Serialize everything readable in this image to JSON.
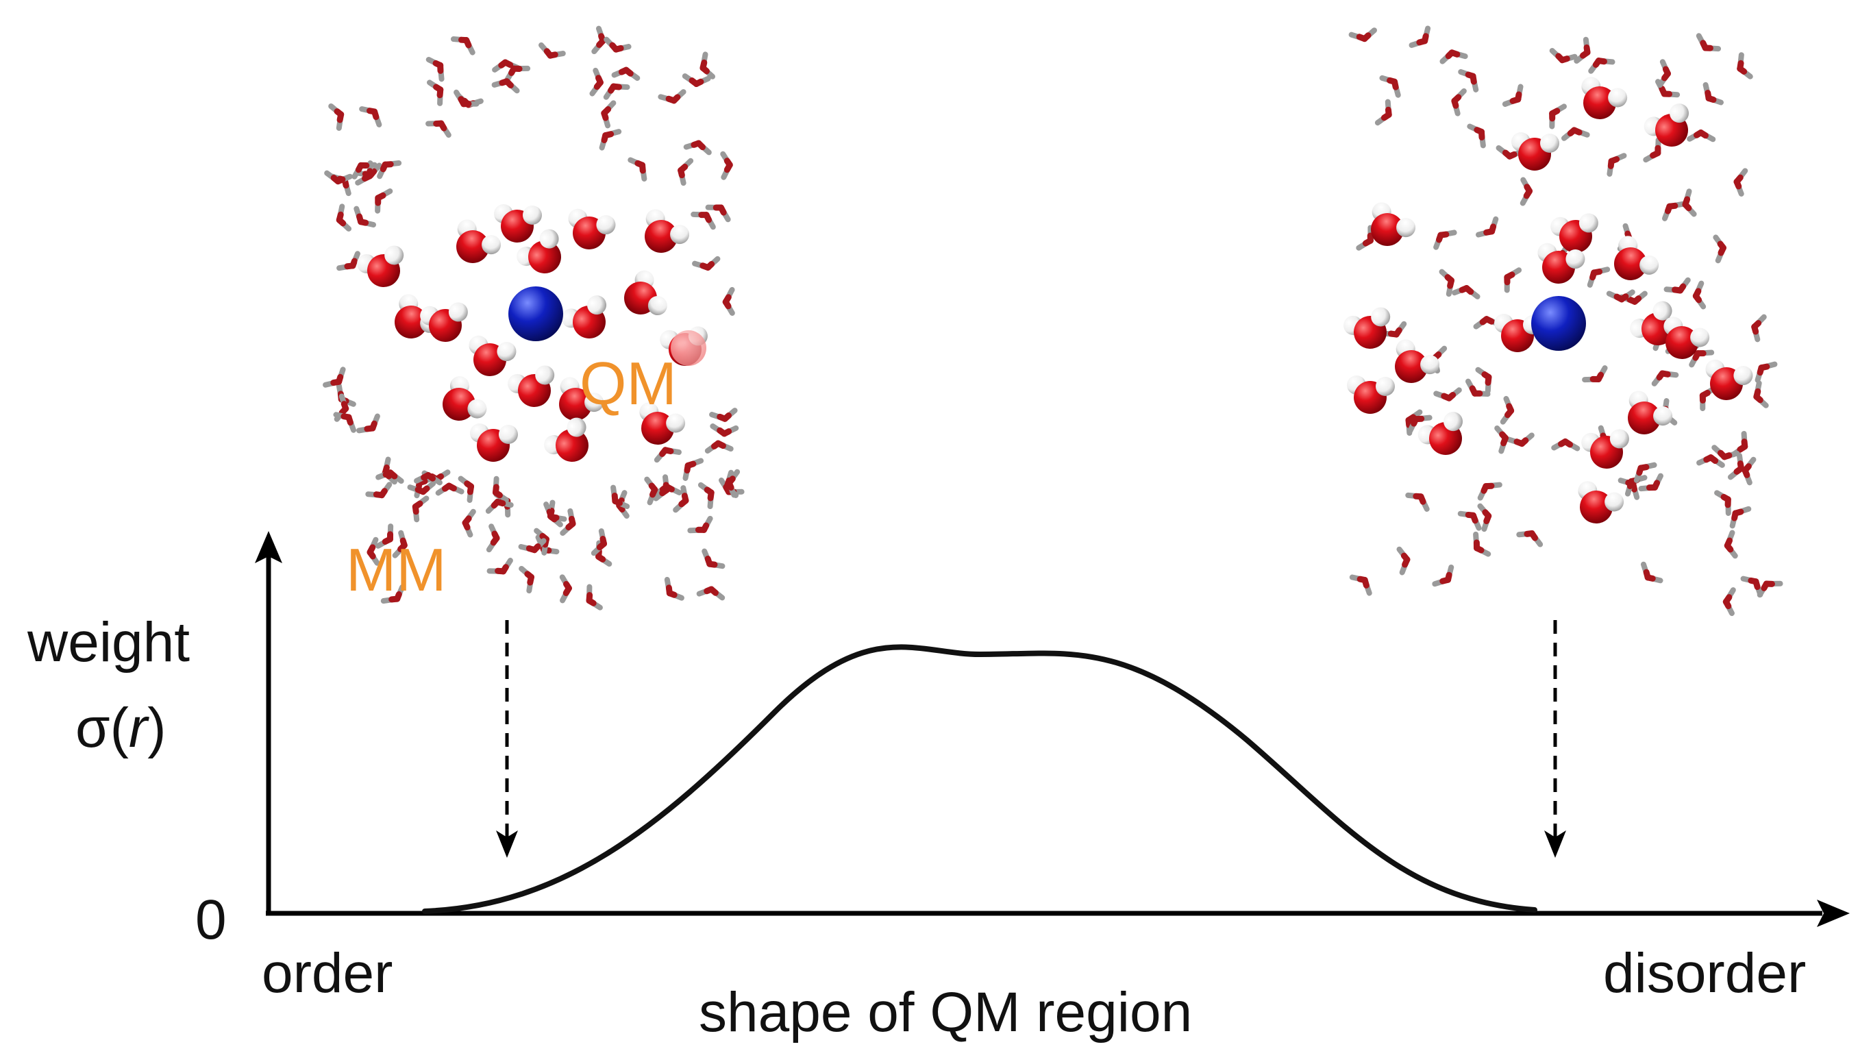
{
  "labels": {
    "y_axis_line1": "weight",
    "y_axis_line2_sigma": "σ(",
    "y_axis_line2_r": "r",
    "y_axis_line2_close": ")",
    "origin": "0",
    "x_left": "order",
    "x_right": "disorder",
    "x_axis": "shape of QM region",
    "qm": "QM",
    "mm": "MM"
  },
  "colors": {
    "axis": "#000000",
    "curve": "#111111",
    "region_labels": "#F0922B",
    "oxygen": "#E0101A",
    "hydrogen": "#F4F4F4",
    "solute_ion": "#1020C0",
    "mm_stick_oxygen": "#A8161C",
    "mm_stick_hydrogen": "#9A9A9A"
  },
  "icons": {
    "qm_water": "water-molecule-spacefill",
    "mm_water": "water-molecule-stick",
    "ion": "blue-solute-sphere",
    "down_arrow": "dashed-down-arrow"
  },
  "curve": {
    "shape": "smooth bump",
    "y_origin": 0
  }
}
